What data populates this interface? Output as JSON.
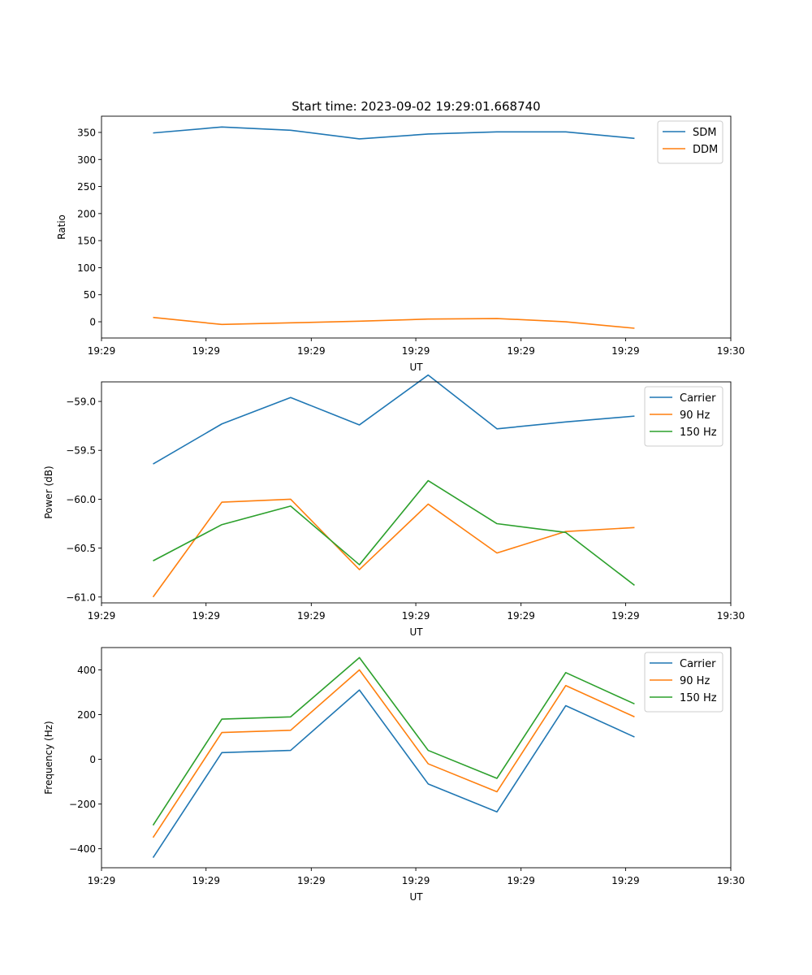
{
  "figure_title": "Start time: 2023-09-02 19:29:01.668740",
  "chart_data": [
    {
      "type": "line",
      "title": "Start time: 2023-09-02 19:29:01.668740",
      "xlabel": "UT",
      "ylabel": "Ratio",
      "x": [
        0,
        1,
        2,
        3,
        4,
        5,
        6,
        7
      ],
      "xlim": [
        -0.75,
        8.4
      ],
      "x_ticks": [
        -0.75,
        0.77,
        2.3,
        3.82,
        5.35,
        6.87,
        8.4
      ],
      "x_tick_labels": [
        "19:29",
        "19:29",
        "19:29",
        "19:29",
        "19:29",
        "19:29",
        "19:30"
      ],
      "ylim": [
        -30,
        380
      ],
      "y_ticks": [
        0,
        50,
        100,
        150,
        200,
        250,
        300,
        350
      ],
      "y_tick_labels": [
        "0",
        "50",
        "100",
        "150",
        "200",
        "250",
        "300",
        "350"
      ],
      "legend_position": "top-right",
      "series": [
        {
          "name": "SDM",
          "color": "#1f77b4",
          "values": [
            349,
            360,
            354,
            338,
            347,
            351,
            351,
            339
          ]
        },
        {
          "name": "DDM",
          "color": "#ff7f0e",
          "values": [
            8,
            -5,
            -2,
            1,
            5,
            6,
            0,
            -12
          ]
        }
      ]
    },
    {
      "type": "line",
      "title": "",
      "xlabel": "UT",
      "ylabel": "Power (dB)",
      "x": [
        0,
        1,
        2,
        3,
        4,
        5,
        6,
        7
      ],
      "xlim": [
        -0.75,
        8.4
      ],
      "x_ticks": [
        -0.75,
        0.77,
        2.3,
        3.82,
        5.35,
        6.87,
        8.4
      ],
      "x_tick_labels": [
        "19:29",
        "19:29",
        "19:29",
        "19:29",
        "19:29",
        "19:29",
        "19:30"
      ],
      "ylim": [
        -61.06,
        -58.8
      ],
      "y_ticks": [
        -59.0,
        -59.5,
        -60.0,
        -60.5,
        -61.0
      ],
      "y_tick_labels": [
        "−59.0",
        "−59.5",
        "−60.0",
        "−60.5",
        "−61.0"
      ],
      "legend_position": "top-right",
      "series": [
        {
          "name": "Carrier",
          "color": "#1f77b4",
          "values": [
            -59.64,
            -59.23,
            -58.96,
            -59.24,
            -58.73,
            -59.28,
            -59.21,
            -59.15
          ]
        },
        {
          "name": "90 Hz",
          "color": "#ff7f0e",
          "values": [
            -61.0,
            -60.03,
            -60.0,
            -60.72,
            -60.05,
            -60.55,
            -60.33,
            -60.29
          ]
        },
        {
          "name": "150 Hz",
          "color": "#2ca02c",
          "values": [
            -60.63,
            -60.26,
            -60.07,
            -60.67,
            -59.81,
            -60.25,
            -60.34,
            -60.88
          ]
        }
      ]
    },
    {
      "type": "line",
      "title": "",
      "xlabel": "UT",
      "ylabel": "Frequency (Hz)",
      "x": [
        0,
        1,
        2,
        3,
        4,
        5,
        6,
        7
      ],
      "xlim": [
        -0.75,
        8.4
      ],
      "x_ticks": [
        -0.75,
        0.77,
        2.3,
        3.82,
        5.35,
        6.87,
        8.4
      ],
      "x_tick_labels": [
        "19:29",
        "19:29",
        "19:29",
        "19:29",
        "19:29",
        "19:29",
        "19:30"
      ],
      "ylim": [
        -485,
        500
      ],
      "y_ticks": [
        400,
        200,
        0,
        -200,
        -400
      ],
      "y_tick_labels": [
        "400",
        "200",
        "0",
        "−200",
        "−400"
      ],
      "legend_position": "top-right",
      "series": [
        {
          "name": "Carrier",
          "color": "#1f77b4",
          "values": [
            -440,
            30,
            40,
            310,
            -110,
            -235,
            240,
            100
          ]
        },
        {
          "name": "90 Hz",
          "color": "#ff7f0e",
          "values": [
            -350,
            120,
            130,
            400,
            -20,
            -145,
            330,
            190
          ]
        },
        {
          "name": "150 Hz",
          "color": "#2ca02c",
          "values": [
            -295,
            180,
            190,
            455,
            40,
            -85,
            388,
            248
          ]
        }
      ]
    }
  ]
}
